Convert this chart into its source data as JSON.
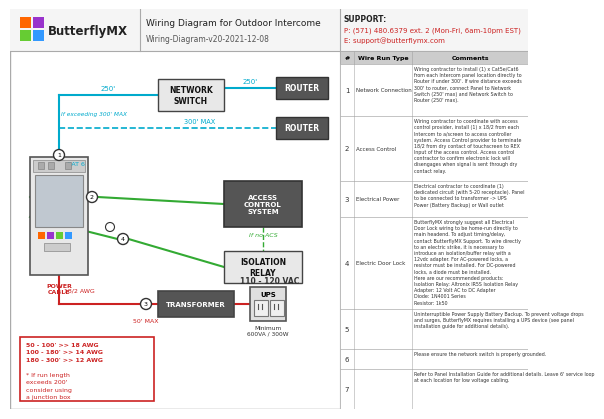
{
  "title": "Wiring Diagram for Outdoor Intercome",
  "subtitle": "Wiring-Diagram-v20-2021-12-08",
  "logo_text": "ButterflyMX",
  "support_line1": "SUPPORT:",
  "support_line2": "P: (571) 480.6379 ext. 2 (Mon-Fri, 6am-10pm EST)",
  "support_line3": "E: support@butterflymx.com",
  "bg_color": "#ffffff",
  "cyan": "#00aacc",
  "green": "#33aa33",
  "red": "#cc2222",
  "dark": "#222222",
  "table_rows": [
    {
      "num": "1",
      "type": "Network Connection",
      "comment": "Wiring contractor to install (1) x Cat5e/Cat6\nfrom each Intercom panel location directly to\nRouter if under 300'. If wire distance exceeds\n300' to router, connect Panel to Network\nSwitch (250' max) and Network Switch to\nRouter (250' max)."
    },
    {
      "num": "2",
      "type": "Access Control",
      "comment": "Wiring contractor to coordinate with access\ncontrol provider, install (1) x 18/2 from each\nIntercom to a/screen to access controller\nsystem. Access Control provider to terminate\n18/2 from dry contact of touchscreen to REX\nInput of the access control. Access control\ncontractor to confirm electronic lock will\ndisengages when signal is sent through dry\ncontact relay."
    },
    {
      "num": "3",
      "type": "Electrical Power",
      "comment": "Electrical contractor to coordinate (1)\ndedicated circuit (with 5-20 receptacle). Panel\nto be connected to transformer -> UPS\nPower (Battery Backup) or Wall outlet"
    },
    {
      "num": "4",
      "type": "Electric Door Lock",
      "comment": "ButterflyMX strongly suggest all Electrical\nDoor Lock wiring to be home-run directly to\nmain headend. To adjust timing/delay,\ncontact ButterflyMX Support. To wire directly\nto an electric strike, it is necessary to\nintroduce an isolation/buffer relay with a\n12vdc adapter. For AC-powered locks, a\nresistor must be installed. For DC-powered\nlocks, a diode must be installed.\nHere are our recommended products:\nIsolation Relay: Altronix IR5S Isolation Relay\nAdapter: 12 Volt AC to DC Adapter\nDiode: 1N4001 Series\nResistor: 1k50"
    },
    {
      "num": "5",
      "type": "",
      "comment": "Uninterruptible Power Supply Battery Backup. To prevent voltage drops\nand surges, ButterflyMX requires installing a UPS device (see panel\ninstallation guide for additional details)."
    },
    {
      "num": "6",
      "type": "",
      "comment": "Please ensure the network switch is properly grounded."
    },
    {
      "num": "7",
      "type": "",
      "comment": "Refer to Panel Installation Guide for additional details. Leave 6' service loop\nat each location for low voltage cabling."
    }
  ]
}
